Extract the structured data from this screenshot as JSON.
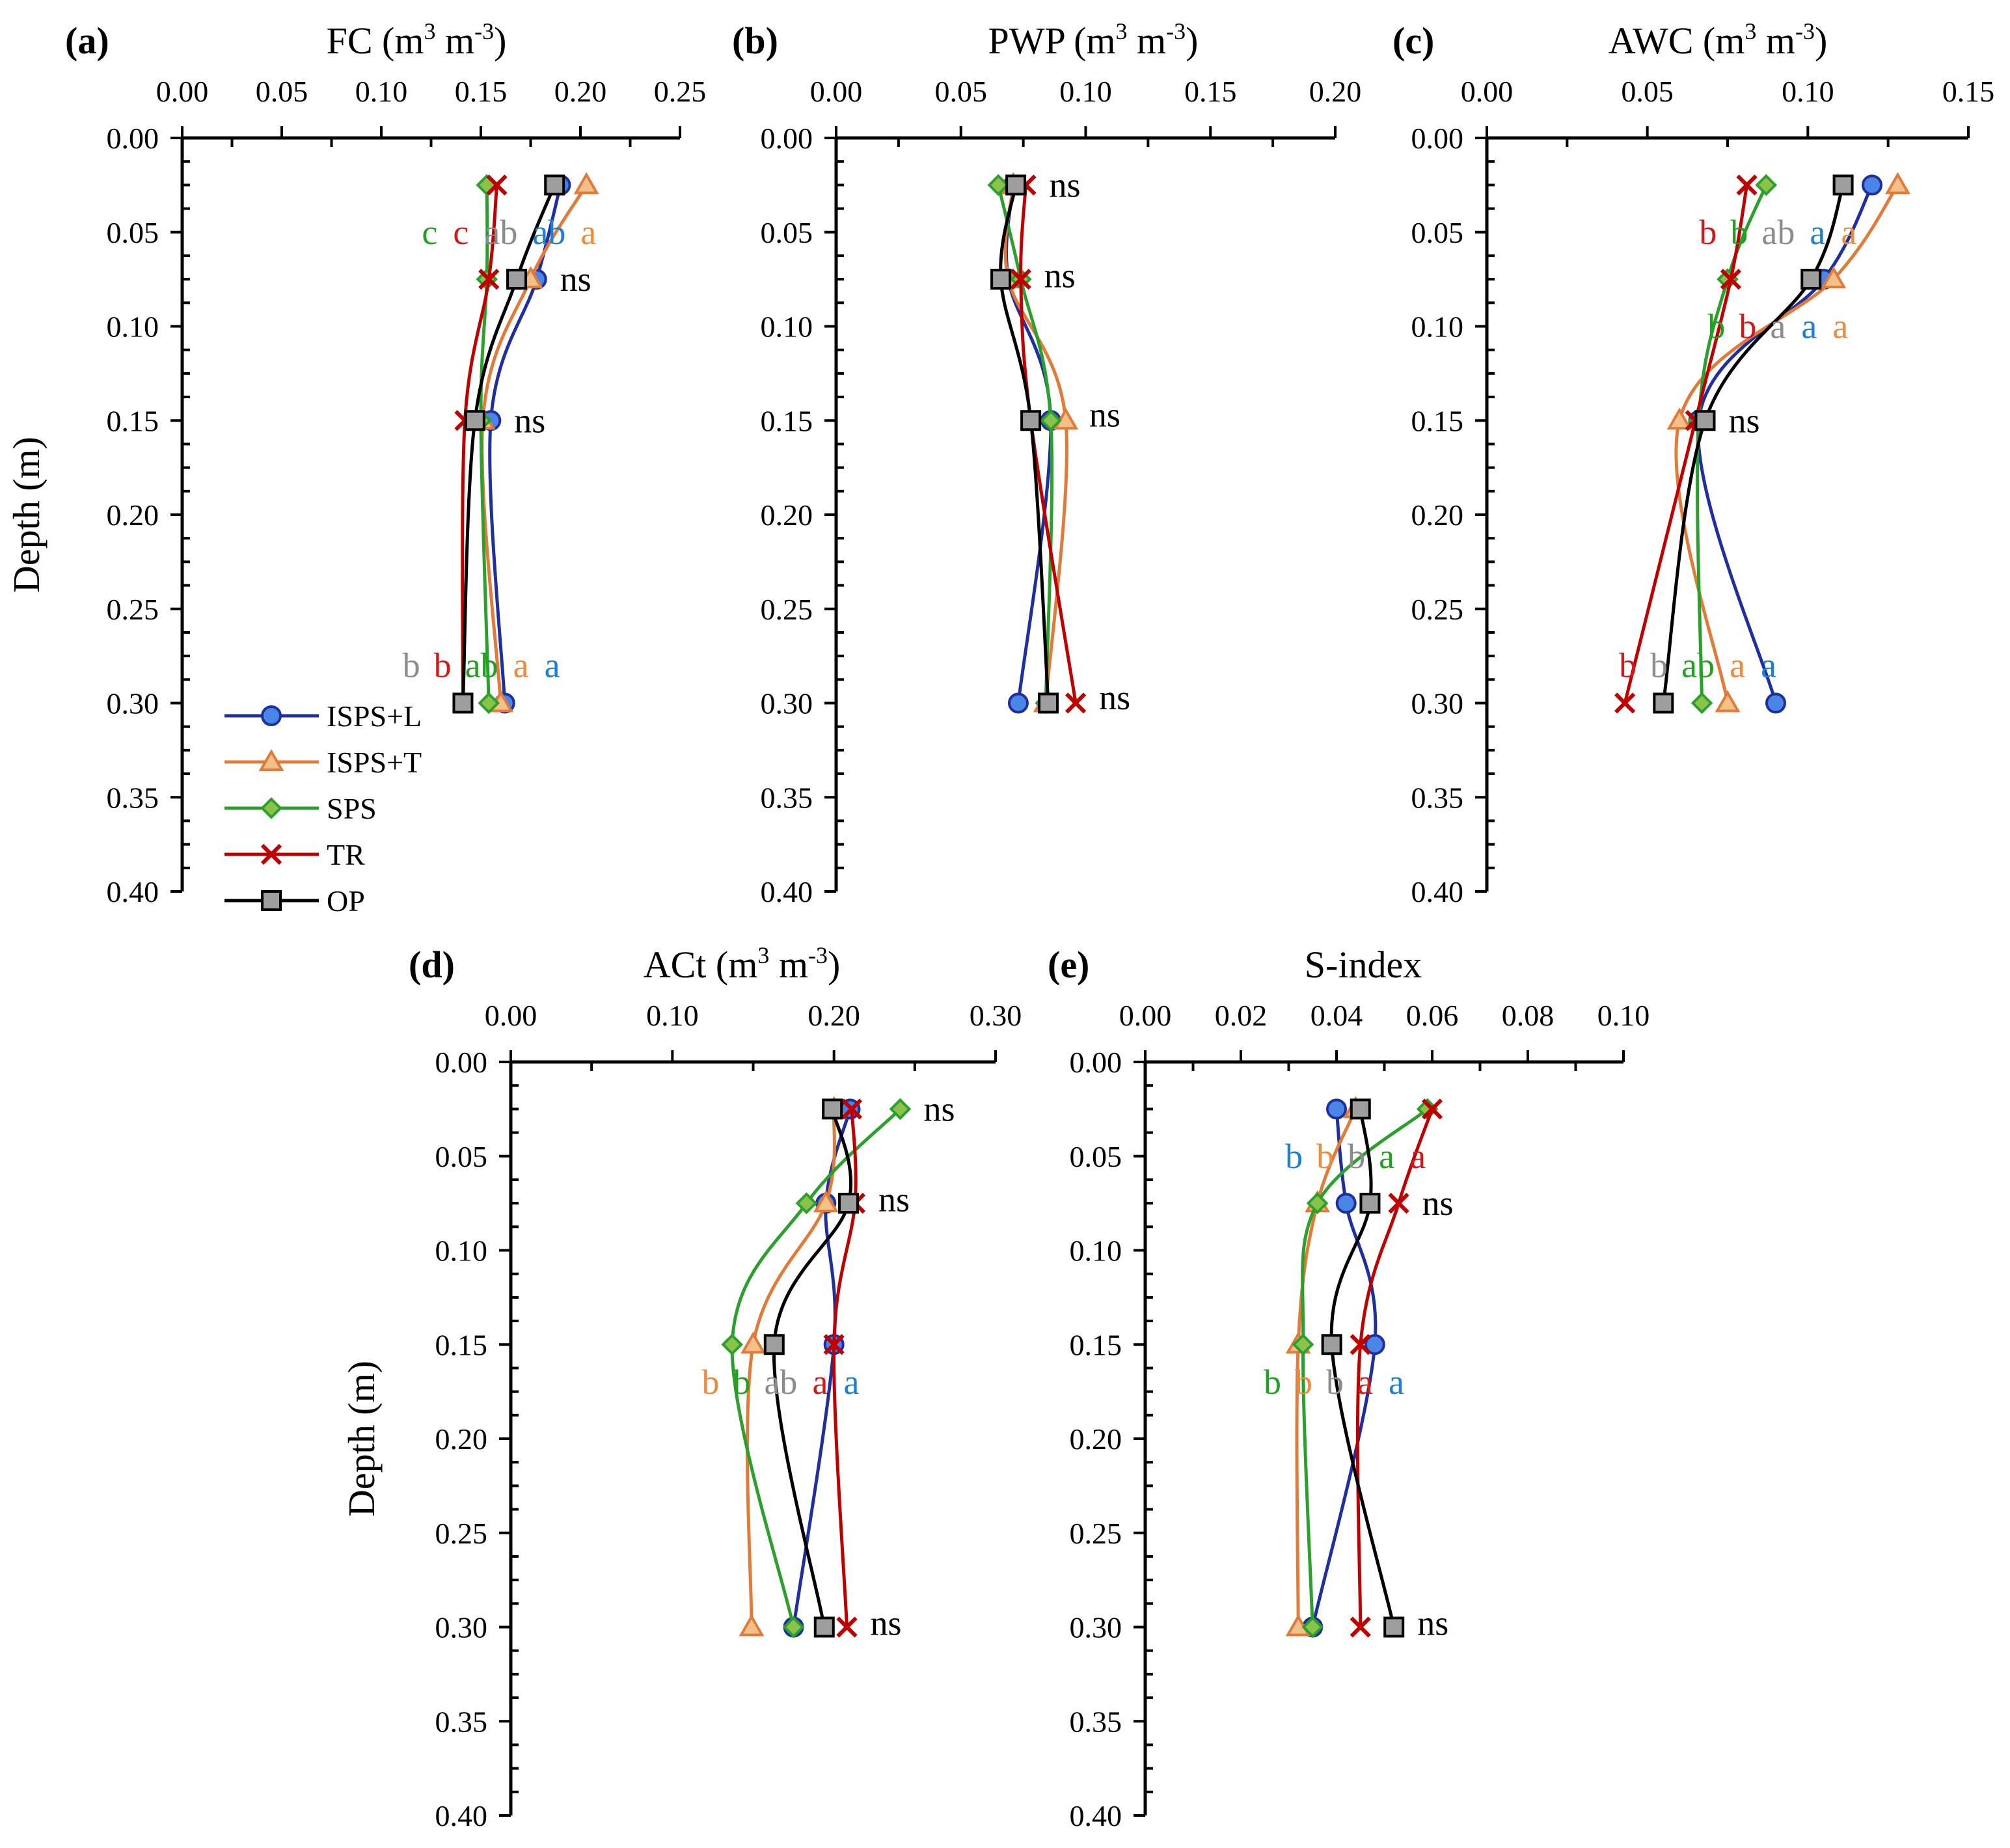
{
  "figure": {
    "y_tick_labels": [
      "0.00",
      "0.05",
      "0.10",
      "0.15",
      "0.20",
      "0.25",
      "0.30",
      "0.35",
      "0.40"
    ],
    "ylabel": "Depth (m)"
  },
  "legend": {
    "position": "lower-left of panel (a)",
    "entries": [
      {
        "name": "ISPS+L",
        "line": "#1f2fa0",
        "fill": "#4a86e8",
        "marker": "circle"
      },
      {
        "name": "ISPS+T",
        "line": "#e07b39",
        "fill": "#f3c08a",
        "marker": "triangle"
      },
      {
        "name": "SPS",
        "line": "#2ca02c",
        "fill": "#8bc34a",
        "marker": "diamond"
      },
      {
        "name": "TR",
        "line": "#c00000",
        "fill": "#c00000",
        "marker": "x"
      },
      {
        "name": "OP",
        "line": "#000000",
        "fill": "#9e9e9e",
        "marker": "square"
      }
    ]
  },
  "sig_colors": {
    "ISPS+L": "#1f7fd0",
    "ISPS+T": "#ef8a3c",
    "SPS": "#21a021",
    "TR": "#d11a1a",
    "OP": "#8c8c8c",
    "ns": "#000000"
  },
  "chart_data": [
    {
      "panel": "(a)",
      "type": "line",
      "title": "FC (m³ m⁻³)",
      "title_main": "FC (m",
      "title_exp1": "3",
      "title_mid": " m",
      "title_exp2": "-3",
      "title_end": ")",
      "xlim": [
        0,
        0.25
      ],
      "ylim": [
        0,
        0.4
      ],
      "x_ticks": [
        "0.00",
        "0.05",
        "0.10",
        "0.15",
        "0.20",
        "0.25"
      ],
      "depths": [
        0.025,
        0.075,
        0.15,
        0.3
      ],
      "series": [
        {
          "name": "ISPS+L",
          "values": [
            0.19,
            0.178,
            0.155,
            0.162
          ]
        },
        {
          "name": "ISPS+T",
          "values": [
            0.203,
            0.175,
            0.151,
            0.16
          ]
        },
        {
          "name": "SPS",
          "values": [
            0.153,
            0.153,
            0.15,
            0.154
          ]
        },
        {
          "name": "TR",
          "values": [
            0.158,
            0.154,
            0.142,
            0.141
          ]
        },
        {
          "name": "OP",
          "values": [
            0.187,
            0.168,
            0.147,
            0.141
          ]
        }
      ],
      "letters": [
        {
          "depth": 0.05,
          "items": [
            [
              "SPS",
              "c"
            ],
            [
              "TR",
              "c"
            ],
            [
              "OP",
              "ab"
            ],
            [
              "ISPS+L",
              "ab"
            ],
            [
              "ISPS+T",
              "a"
            ]
          ]
        },
        {
          "depth": 0.075,
          "items": [
            [
              "ns",
              "ns"
            ]
          ]
        },
        {
          "depth": 0.15,
          "items": [
            [
              "ns",
              "ns"
            ]
          ]
        },
        {
          "depth": 0.28,
          "items": [
            [
              "OP",
              "b"
            ],
            [
              "TR",
              "b"
            ],
            [
              "SPS",
              "ab"
            ],
            [
              "ISPS+T",
              "a"
            ],
            [
              "ISPS+L",
              "a"
            ]
          ]
        }
      ]
    },
    {
      "panel": "(b)",
      "type": "line",
      "title": "PWP (m³ m⁻³)",
      "title_main": "PWP (m",
      "title_exp1": "3",
      "title_mid": " m",
      "title_exp2": "-3",
      "title_end": ")",
      "xlim": [
        0,
        0.2
      ],
      "ylim": [
        0,
        0.4
      ],
      "x_ticks": [
        "0.00",
        "0.05",
        "0.10",
        "0.15",
        "0.20"
      ],
      "depths": [
        0.025,
        0.075,
        0.15,
        0.3
      ],
      "series": [
        {
          "name": "ISPS+L",
          "values": [
            0.071,
            0.069,
            0.086,
            0.073
          ]
        },
        {
          "name": "ISPS+T",
          "values": [
            0.071,
            0.069,
            0.092,
            0.084
          ]
        },
        {
          "name": "SPS",
          "values": [
            0.065,
            0.074,
            0.086,
            0.084
          ]
        },
        {
          "name": "TR",
          "values": [
            0.076,
            0.074,
            0.078,
            0.096
          ]
        },
        {
          "name": "OP",
          "values": [
            0.072,
            0.066,
            0.078,
            0.085
          ]
        }
      ],
      "letters": [
        {
          "depth": 0.025,
          "items": [
            [
              "ns",
              "ns"
            ]
          ]
        },
        {
          "depth": 0.073,
          "items": [
            [
              "ns",
              "ns"
            ]
          ]
        },
        {
          "depth": 0.147,
          "items": [
            [
              "ns",
              "ns"
            ]
          ]
        },
        {
          "depth": 0.297,
          "items": [
            [
              "ns",
              "ns"
            ]
          ]
        }
      ]
    },
    {
      "panel": "(c)",
      "type": "line",
      "title": "AWC (m³ m⁻³)",
      "title_main": "AWC (m",
      "title_exp1": "3",
      "title_mid": " m",
      "title_exp2": "-3",
      "title_end": ")",
      "xlim": [
        0,
        0.15
      ],
      "ylim": [
        0,
        0.4
      ],
      "x_ticks": [
        "0.00",
        "0.05",
        "0.10",
        "0.15"
      ],
      "depths": [
        0.025,
        0.075,
        0.15,
        0.3
      ],
      "series": [
        {
          "name": "ISPS+L",
          "values": [
            0.12,
            0.105,
            0.066,
            0.09
          ]
        },
        {
          "name": "ISPS+T",
          "values": [
            0.128,
            0.108,
            0.06,
            0.075
          ]
        },
        {
          "name": "SPS",
          "values": [
            0.087,
            0.075,
            0.066,
            0.067
          ]
        },
        {
          "name": "TR",
          "values": [
            0.081,
            0.076,
            0.065,
            0.043
          ]
        },
        {
          "name": "OP",
          "values": [
            0.111,
            0.101,
            0.068,
            0.055
          ]
        }
      ],
      "letters": [
        {
          "depth": 0.05,
          "items": [
            [
              "TR",
              "b"
            ],
            [
              "SPS",
              "b"
            ],
            [
              "OP",
              "ab"
            ],
            [
              "ISPS+L",
              "a"
            ],
            [
              "ISPS+T",
              "a"
            ]
          ]
        },
        {
          "depth": 0.1,
          "items": [
            [
              "SPS",
              "b"
            ],
            [
              "TR",
              "b"
            ],
            [
              "OP",
              "a"
            ],
            [
              "ISPS+L",
              "a"
            ],
            [
              "ISPS+T",
              "a"
            ]
          ]
        },
        {
          "depth": 0.15,
          "items": [
            [
              "ns",
              "ns"
            ]
          ]
        },
        {
          "depth": 0.28,
          "items": [
            [
              "TR",
              "b"
            ],
            [
              "OP",
              "b"
            ],
            [
              "SPS",
              "ab"
            ],
            [
              "ISPS+T",
              "a"
            ],
            [
              "ISPS+L",
              "a"
            ]
          ]
        }
      ]
    },
    {
      "panel": "(d)",
      "type": "line",
      "title": "ACt (m³ m⁻³)",
      "title_main": "ACt (m",
      "title_exp1": "3",
      "title_mid": " m",
      "title_exp2": "-3",
      "title_end": ")",
      "xlim": [
        0,
        0.3
      ],
      "ylim": [
        0,
        0.4
      ],
      "x_ticks": [
        "0.00",
        "0.10",
        "0.20",
        "0.30"
      ],
      "depths": [
        0.025,
        0.075,
        0.15,
        0.3
      ],
      "series": [
        {
          "name": "ISPS+L",
          "values": [
            0.21,
            0.195,
            0.2,
            0.175
          ]
        },
        {
          "name": "ISPS+T",
          "values": [
            0.2,
            0.195,
            0.15,
            0.149
          ]
        },
        {
          "name": "SPS",
          "values": [
            0.241,
            0.183,
            0.137,
            0.175
          ]
        },
        {
          "name": "TR",
          "values": [
            0.211,
            0.213,
            0.2,
            0.208
          ]
        },
        {
          "name": "OP",
          "values": [
            0.199,
            0.209,
            0.163,
            0.194
          ]
        }
      ],
      "letters": [
        {
          "depth": 0.025,
          "items": [
            [
              "ns",
              "ns"
            ]
          ]
        },
        {
          "depth": 0.073,
          "items": [
            [
              "ns",
              "ns"
            ]
          ]
        },
        {
          "depth": 0.17,
          "items": [
            [
              "ISPS+T",
              "b"
            ],
            [
              "SPS",
              "b"
            ],
            [
              "OP",
              "ab"
            ],
            [
              "TR",
              "a"
            ],
            [
              "ISPS+L",
              "a"
            ]
          ]
        },
        {
          "depth": 0.298,
          "items": [
            [
              "ns",
              "ns"
            ]
          ]
        }
      ]
    },
    {
      "panel": "(e)",
      "type": "line",
      "title": "S-index",
      "title_main": "S-index",
      "title_exp1": "",
      "title_mid": "",
      "title_exp2": "",
      "title_end": "",
      "xlim": [
        0,
        0.1
      ],
      "ylim": [
        0,
        0.4
      ],
      "x_ticks": [
        "0.00",
        "0.02",
        "0.04",
        "0.06",
        "0.08",
        "0.10"
      ],
      "depths": [
        0.025,
        0.075,
        0.15,
        0.3
      ],
      "series": [
        {
          "name": "ISPS+L",
          "values": [
            0.04,
            0.042,
            0.048,
            0.035
          ]
        },
        {
          "name": "ISPS+T",
          "values": [
            0.044,
            0.036,
            0.032,
            0.032
          ]
        },
        {
          "name": "SPS",
          "values": [
            0.059,
            0.036,
            0.033,
            0.035
          ]
        },
        {
          "name": "TR",
          "values": [
            0.06,
            0.053,
            0.045,
            0.045
          ]
        },
        {
          "name": "OP",
          "values": [
            0.045,
            0.047,
            0.039,
            0.052
          ]
        }
      ],
      "letters": [
        {
          "depth": 0.05,
          "items": [
            [
              "ISPS+L",
              "b"
            ],
            [
              "ISPS+T",
              "b"
            ],
            [
              "OP",
              "b"
            ],
            [
              "SPS",
              "a"
            ],
            [
              "TR",
              "a"
            ]
          ]
        },
        {
          "depth": 0.075,
          "items": [
            [
              "ns",
              "ns"
            ]
          ]
        },
        {
          "depth": 0.17,
          "items": [
            [
              "SPS",
              "b"
            ],
            [
              "ISPS+T",
              "b"
            ],
            [
              "OP",
              "b"
            ],
            [
              "TR",
              "a"
            ],
            [
              "ISPS+L",
              "a"
            ]
          ]
        },
        {
          "depth": 0.298,
          "items": [
            [
              "ns",
              "ns"
            ]
          ]
        }
      ]
    }
  ]
}
